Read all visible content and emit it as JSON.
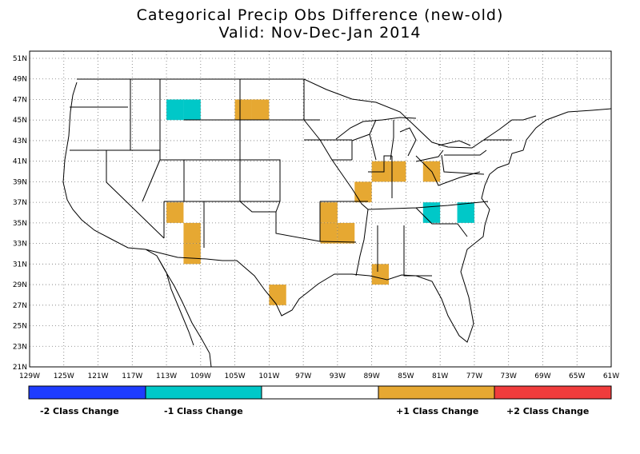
{
  "title": "Categorical Precip Obs Difference (new-old)",
  "subtitle": "Valid: Nov-Dec-Jan 2014",
  "map": {
    "lon_range": [
      -129,
      -61
    ],
    "lat_range": [
      21,
      52
    ],
    "x_ticks": [
      "129W",
      "125W",
      "121W",
      "117W",
      "113W",
      "109W",
      "105W",
      "101W",
      "97W",
      "93W",
      "89W",
      "85W",
      "81W",
      "77W",
      "73W",
      "69W",
      "65W",
      "61W"
    ],
    "y_ticks": [
      "51N",
      "49N",
      "47N",
      "45N",
      "43N",
      "41N",
      "39N",
      "37N",
      "35N",
      "33N",
      "31N",
      "29N",
      "27N",
      "25N",
      "23N",
      "21N"
    ],
    "grid": "dotted"
  },
  "colors": {
    "minus2": "#1e3cff",
    "minus1": "#00c8c8",
    "zero": "#ffffff",
    "plus1": "#e6a832",
    "plus2": "#f03c3c"
  },
  "legend": {
    "labels": [
      "-2 Class Change",
      "-1 Class Change",
      "+1 Class Change",
      "+2 Class Change"
    ]
  },
  "chart_data": {
    "type": "heatmap",
    "cell_size_deg": 2,
    "cells": [
      {
        "lon": -112,
        "lat": 46,
        "value": -1
      },
      {
        "lon": -110,
        "lat": 46,
        "value": -1
      },
      {
        "lon": -104,
        "lat": 46,
        "value": 1
      },
      {
        "lon": -102,
        "lat": 46,
        "value": 1
      },
      {
        "lon": -88,
        "lat": 40,
        "value": 1
      },
      {
        "lon": -86,
        "lat": 40,
        "value": 1
      },
      {
        "lon": -82,
        "lat": 40,
        "value": 1
      },
      {
        "lon": -90,
        "lat": 38,
        "value": 1
      },
      {
        "lon": -112,
        "lat": 36,
        "value": 1
      },
      {
        "lon": -94,
        "lat": 36,
        "value": 1
      },
      {
        "lon": -82,
        "lat": 36,
        "value": -1
      },
      {
        "lon": -78,
        "lat": 36,
        "value": -1
      },
      {
        "lon": -110,
        "lat": 34,
        "value": 1
      },
      {
        "lon": -94,
        "lat": 34,
        "value": 1
      },
      {
        "lon": -92,
        "lat": 34,
        "value": 1
      },
      {
        "lon": -110,
        "lat": 32,
        "value": 1
      },
      {
        "lon": -88,
        "lat": 30,
        "value": 1
      },
      {
        "lon": -100,
        "lat": 28,
        "value": 1
      }
    ]
  }
}
